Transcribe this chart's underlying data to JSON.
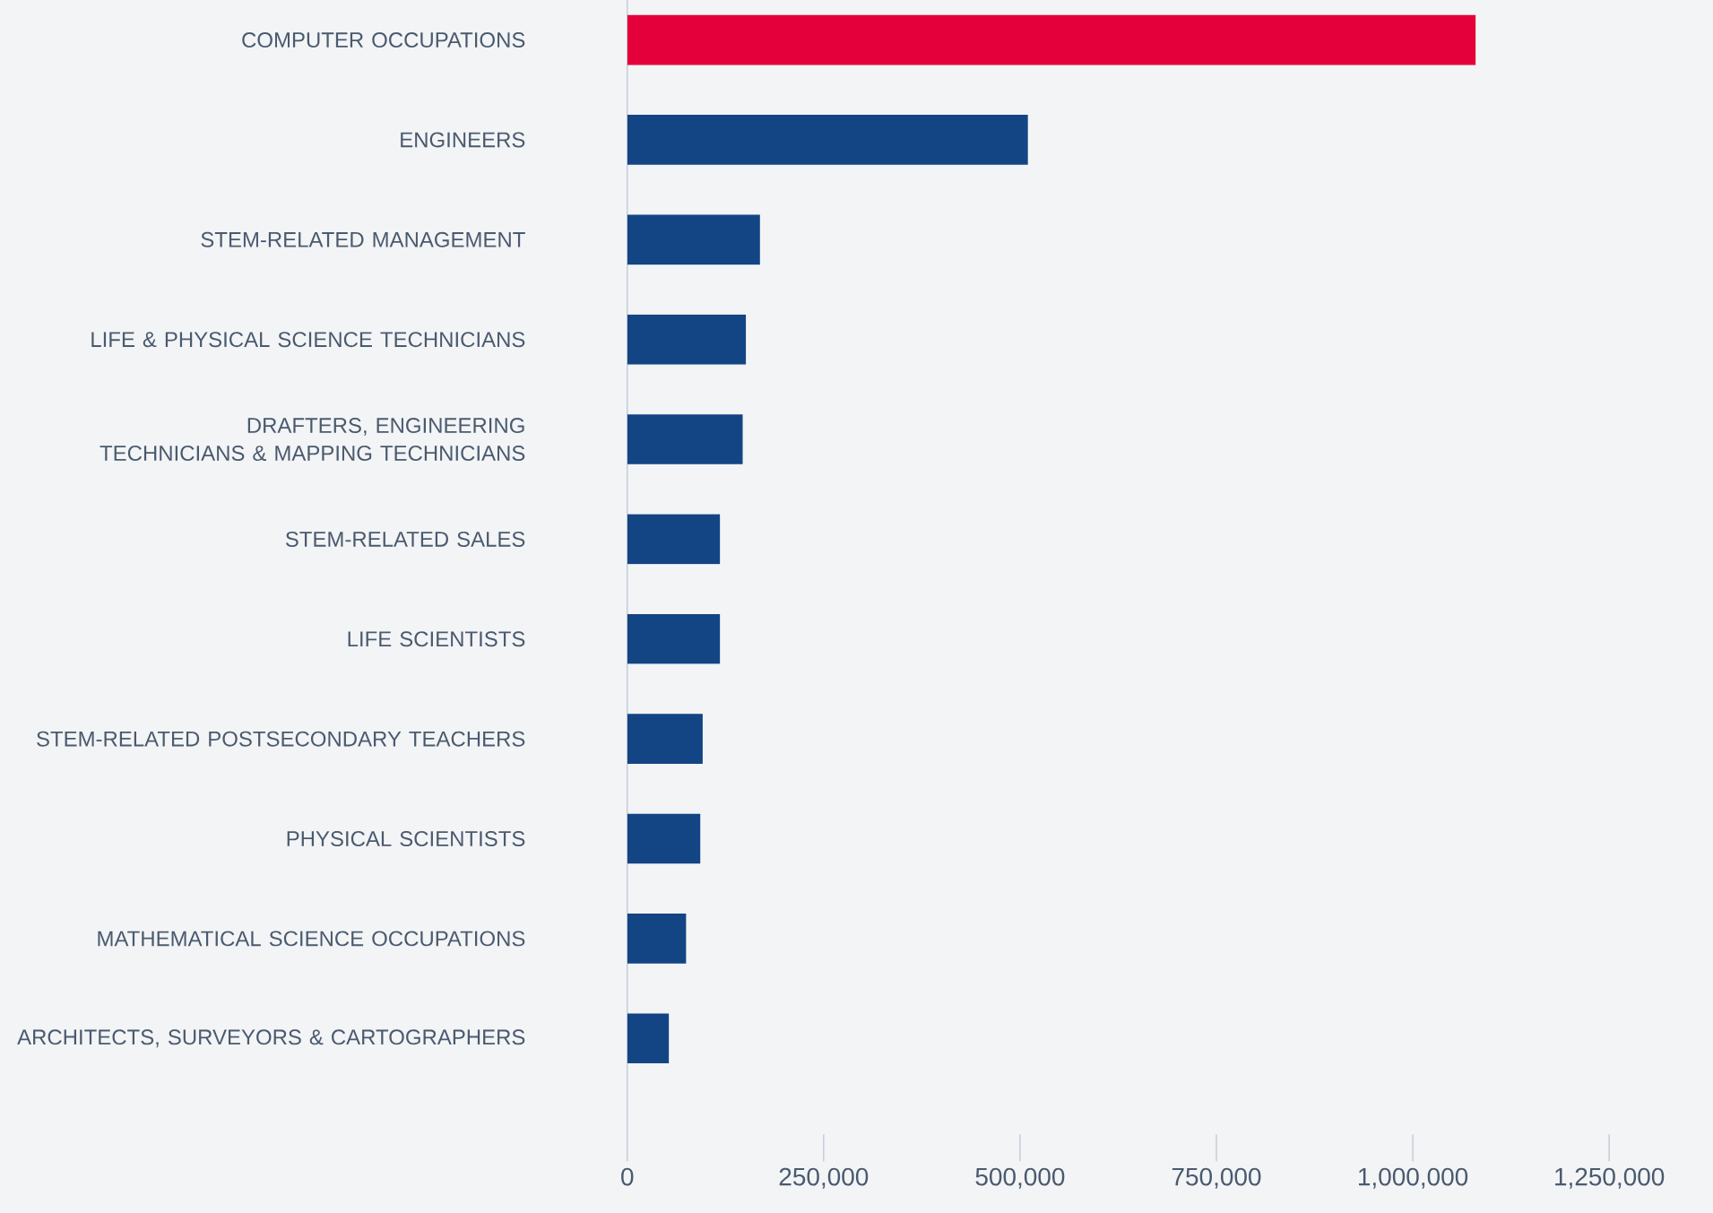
{
  "chart_data": {
    "type": "bar",
    "orientation": "horizontal",
    "categories": [
      "COMPUTER OCCUPATIONS",
      "ENGINEERS",
      "STEM-RELATED MANAGEMENT",
      "LIFE & PHYSICAL SCIENCE TECHNICIANS",
      "DRAFTERS, ENGINEERING TECHNICIANS & MAPPING TECHNICIANS",
      "STEM-RELATED SALES",
      "LIFE SCIENTISTS",
      "STEM-RELATED POSTSECONDARY TEACHERS",
      "PHYSICAL SCIENTISTS",
      "MATHEMATICAL SCIENCE OCCUPATIONS",
      "ARCHITECTS, SURVEYORS & CARTOGRAPHERS"
    ],
    "values": [
      1080000,
      510000,
      169000,
      151000,
      147000,
      118000,
      118000,
      96000,
      93000,
      75000,
      53000
    ],
    "colors": [
      "#e4003b",
      "#134584",
      "#134584",
      "#134584",
      "#134584",
      "#134584",
      "#134584",
      "#134584",
      "#134584",
      "#134584",
      "#134584"
    ],
    "xlim": [
      0,
      1250000
    ],
    "xticks": [
      {
        "value": 0,
        "label": "0"
      },
      {
        "value": 250000,
        "label": "250,000"
      },
      {
        "value": 500000,
        "label": "500,000"
      },
      {
        "value": 750000,
        "label": "750,000"
      },
      {
        "value": 1000000,
        "label": "1,000,000"
      },
      {
        "value": 1250000,
        "label": "1,250,000"
      }
    ],
    "grid": false
  }
}
